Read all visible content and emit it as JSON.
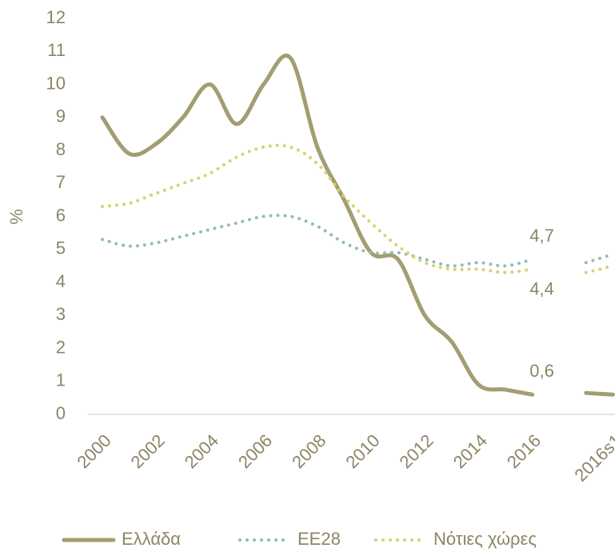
{
  "chart_data": {
    "type": "line",
    "y_label": "%",
    "categories": [
      "2000",
      null,
      "2002",
      null,
      "2004",
      null,
      "2006",
      null,
      "2008",
      null,
      "2010",
      null,
      "2012",
      null,
      "2014",
      null,
      "2016",
      null,
      null,
      "2016s1"
    ],
    "series": [
      {
        "name": "Ελλάδα",
        "color": "#a39d72",
        "dash": "solid",
        "values": [
          9.0,
          7.9,
          8.2,
          9.0,
          10.0,
          8.8,
          10.0,
          10.8,
          8.1,
          6.5,
          4.9,
          4.7,
          3.0,
          2.2,
          0.9,
          0.75,
          0.6,
          null,
          0.65,
          0.6
        ],
        "value_labels": [
          null,
          null,
          null,
          null,
          null,
          null,
          null,
          null,
          null,
          null,
          null,
          null,
          null,
          null,
          null,
          null,
          "0,6",
          null,
          null,
          null
        ]
      },
      {
        "name": "ΕΕ28",
        "color": "#8fbdb6",
        "dash": "dotted",
        "values": [
          5.3,
          5.1,
          5.2,
          5.4,
          5.6,
          5.8,
          6.0,
          6.0,
          5.7,
          5.2,
          4.9,
          4.9,
          4.7,
          4.5,
          4.6,
          4.5,
          4.7,
          null,
          4.6,
          4.85
        ],
        "value_labels": [
          null,
          null,
          null,
          null,
          null,
          null,
          null,
          null,
          null,
          null,
          null,
          null,
          null,
          null,
          null,
          null,
          "4,7",
          null,
          null,
          null
        ]
      },
      {
        "name": "Νότιες χώρες",
        "color": "#d8d170",
        "dash": "dotted",
        "values": [
          6.3,
          6.4,
          6.7,
          7.0,
          7.3,
          7.8,
          8.1,
          8.1,
          7.6,
          6.6,
          5.8,
          5.1,
          4.6,
          4.4,
          4.4,
          4.3,
          4.4,
          null,
          4.3,
          4.5
        ],
        "value_labels": [
          null,
          null,
          null,
          null,
          null,
          null,
          null,
          null,
          null,
          null,
          null,
          null,
          null,
          null,
          null,
          null,
          "4,4",
          null,
          null,
          null
        ]
      }
    ],
    "ylim": [
      0,
      12
    ],
    "yticks": [
      0,
      1,
      2,
      3,
      4,
      5,
      6,
      7,
      8,
      9,
      10,
      11,
      12
    ],
    "grid": false,
    "legend": "bottom"
  }
}
